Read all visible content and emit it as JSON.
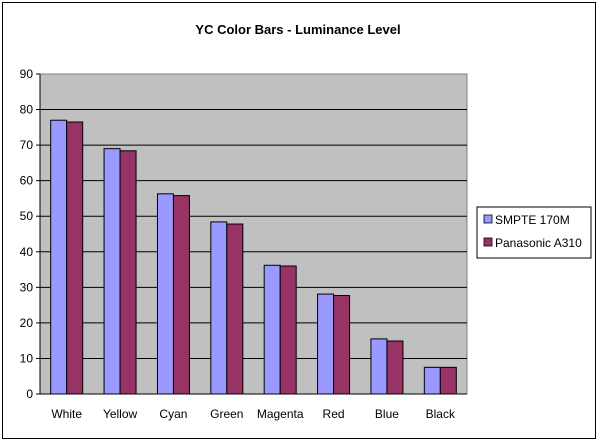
{
  "chart_data": {
    "type": "bar",
    "title": "YC Color Bars -  Luminance Level",
    "xlabel": "",
    "ylabel": "",
    "ylim": [
      0,
      90
    ],
    "yticks": [
      0,
      10,
      20,
      30,
      40,
      50,
      60,
      70,
      80,
      90
    ],
    "categories": [
      "White",
      "Yellow",
      "Cyan",
      "Green",
      "Magenta",
      "Red",
      "Blue",
      "Black"
    ],
    "series": [
      {
        "name": "SMPTE 170M",
        "color": "#9999ff",
        "values": [
          77.0,
          69.0,
          56.3,
          48.4,
          36.2,
          28.1,
          15.5,
          7.5
        ]
      },
      {
        "name": "Panasonic A310",
        "color": "#993366",
        "values": [
          76.5,
          68.4,
          55.8,
          47.8,
          36.0,
          27.7,
          14.9,
          7.5
        ]
      }
    ],
    "grid": true,
    "plot_background": "#c0c0c0",
    "legend_position": "right"
  }
}
